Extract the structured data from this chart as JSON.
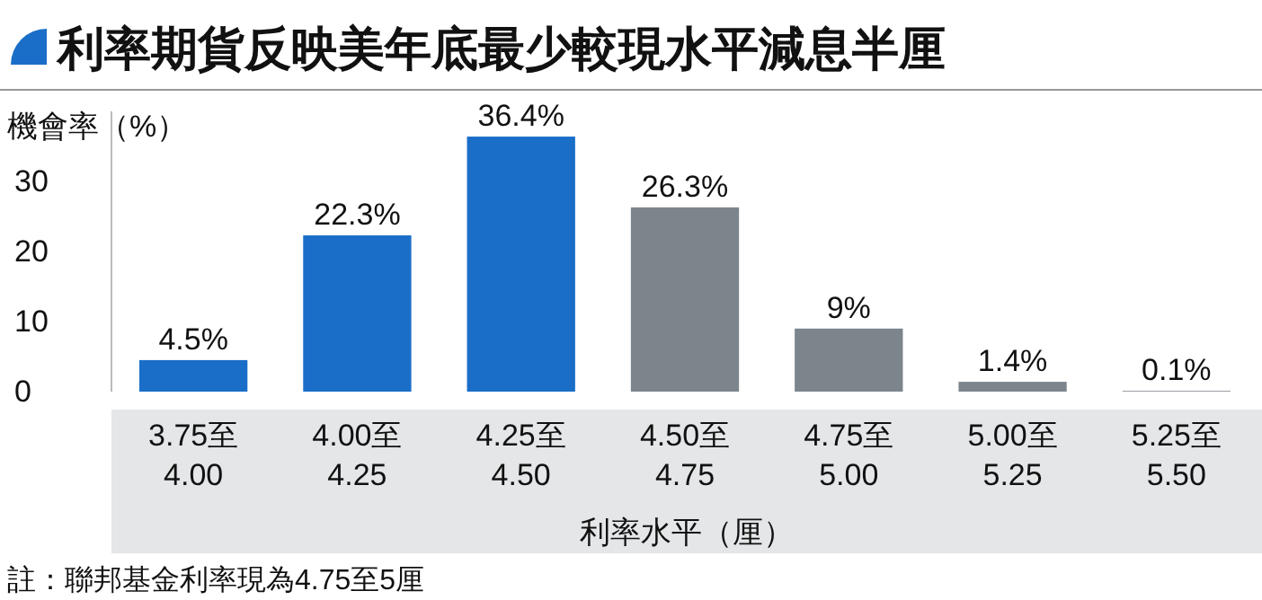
{
  "chart_data": {
    "type": "bar",
    "title": "利率期貨反映美年底最少較現水平減息半厘",
    "ylabel": "機會率（%）",
    "xlabel": "利率水平（厘）",
    "categories": [
      "3.75至\n4.00",
      "4.00至\n4.25",
      "4.25至\n4.50",
      "4.50至\n4.75",
      "4.75至\n5.00",
      "5.00至\n5.25",
      "5.25至\n5.50"
    ],
    "values": [
      4.5,
      22.3,
      36.4,
      26.3,
      9,
      1.4,
      0.1
    ],
    "colors": [
      "#1a6ec8",
      "#1a6ec8",
      "#1a6ec8",
      "#7d858c",
      "#7d858c",
      "#7d858c",
      "#7d858c"
    ],
    "value_labels": [
      "4.5%",
      "22.3%",
      "36.4%",
      "26.3%",
      "9%",
      "1.4%",
      "0.1%"
    ],
    "ylim": [
      0,
      40
    ],
    "yticks": [
      0,
      10,
      20,
      30
    ],
    "grid": false,
    "annotations": [
      "註：聯邦基金利率現為4.75至5厘"
    ]
  }
}
